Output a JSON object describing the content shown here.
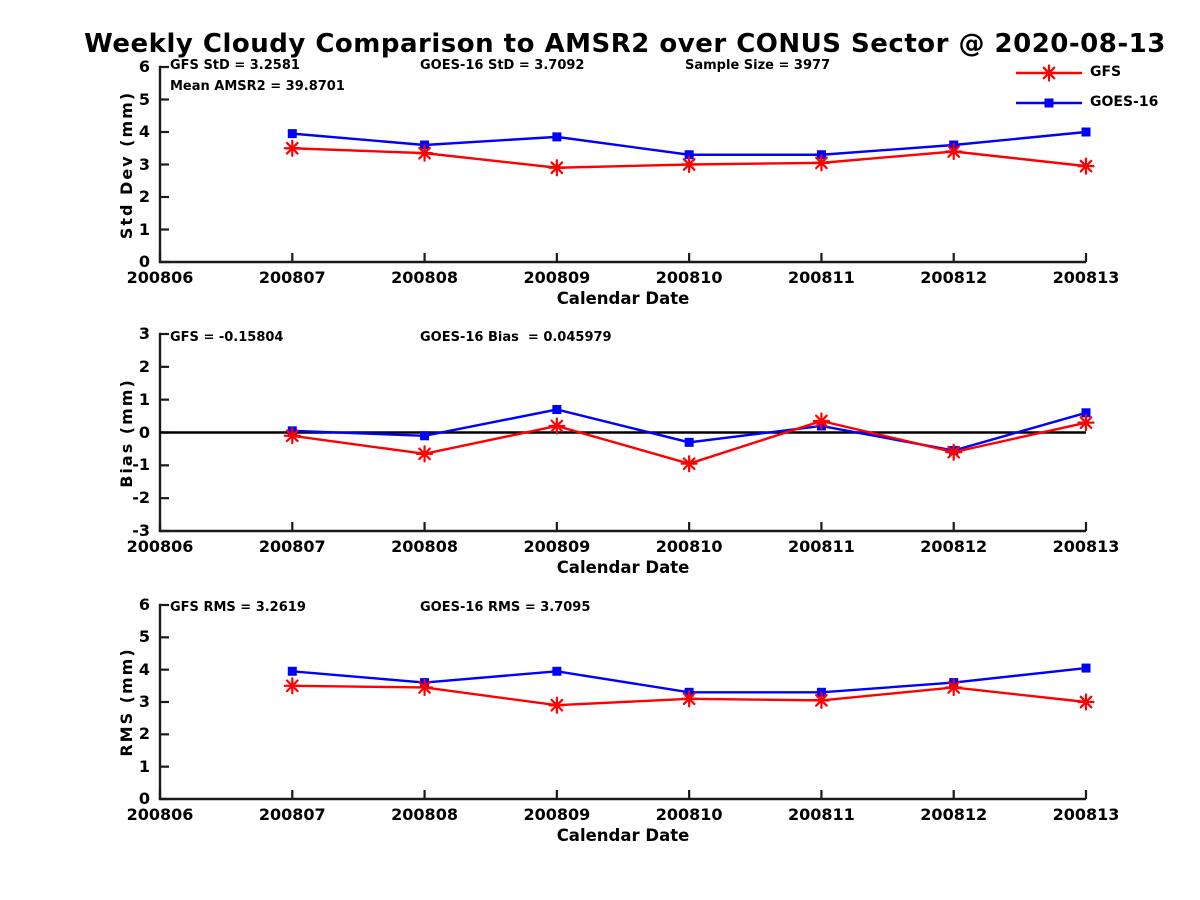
{
  "title": "Weekly Cloudy Comparison to AMSR2 over CONUS Sector @ 2020-08-13",
  "colors": {
    "gfs": "#ff0000",
    "goes16": "#0000ff",
    "axis": "#1a1a1a",
    "zero_line": "#000000"
  },
  "legend": {
    "position": "top-right",
    "items": [
      {
        "label": "GFS",
        "color": "#ff0000",
        "marker": "asterisk"
      },
      {
        "label": "GOES-16",
        "color": "#0000ff",
        "marker": "square"
      }
    ]
  },
  "x_axis": {
    "label": "Calendar Date",
    "ticks": [
      "200806",
      "200807",
      "200808",
      "200809",
      "200810",
      "200811",
      "200812",
      "200813"
    ]
  },
  "chart_data": [
    {
      "type": "line",
      "panel": "std_dev",
      "ylabel": "Std Dev (mm)",
      "xlabel": "Calendar Date",
      "ylim": [
        0,
        6
      ],
      "yticks": [
        0,
        1,
        2,
        3,
        4,
        5,
        6
      ],
      "grid": false,
      "zero_line": false,
      "x_categories": [
        "200807",
        "200808",
        "200809",
        "200810",
        "200811",
        "200812",
        "200813"
      ],
      "annotations": {
        "gfs_std": "GFS StD = 3.2581",
        "mean_amsr2": "Mean AMSR2 = 39.8701",
        "goes_std": "GOES-16 StD = 3.7092",
        "sample_size": "Sample Size = 3977"
      },
      "series": [
        {
          "name": "GFS",
          "color": "#ff0000",
          "marker": "asterisk",
          "values": [
            3.5,
            3.35,
            2.9,
            3.0,
            3.05,
            3.4,
            2.95
          ]
        },
        {
          "name": "GOES-16",
          "color": "#0000ff",
          "marker": "square",
          "values": [
            3.95,
            3.6,
            3.85,
            3.3,
            3.3,
            3.6,
            4.0
          ]
        }
      ]
    },
    {
      "type": "line",
      "panel": "bias",
      "ylabel": "Bias (mm)",
      "xlabel": "Calendar Date",
      "ylim": [
        -3,
        3
      ],
      "yticks": [
        -3,
        -2,
        -1,
        0,
        1,
        2,
        3
      ],
      "grid": false,
      "zero_line": true,
      "x_categories": [
        "200807",
        "200808",
        "200809",
        "200810",
        "200811",
        "200812",
        "200813"
      ],
      "annotations": {
        "gfs_bias": "GFS = -0.15804",
        "goes_bias": "GOES-16 Bias  = 0.045979"
      },
      "series": [
        {
          "name": "GFS",
          "color": "#ff0000",
          "marker": "asterisk",
          "values": [
            -0.1,
            -0.65,
            0.2,
            -0.95,
            0.35,
            -0.6,
            0.3
          ]
        },
        {
          "name": "GOES-16",
          "color": "#0000ff",
          "marker": "square",
          "values": [
            0.05,
            -0.1,
            0.7,
            -0.3,
            0.2,
            -0.55,
            0.6
          ]
        }
      ]
    },
    {
      "type": "line",
      "panel": "rms",
      "ylabel": "RMS (mm)",
      "xlabel": "Calendar Date",
      "ylim": [
        0,
        6
      ],
      "yticks": [
        0,
        1,
        2,
        3,
        4,
        5,
        6
      ],
      "grid": false,
      "zero_line": false,
      "x_categories": [
        "200807",
        "200808",
        "200809",
        "200810",
        "200811",
        "200812",
        "200813"
      ],
      "annotations": {
        "gfs_rms": "GFS RMS = 3.2619",
        "goes_rms": "GOES-16 RMS = 3.7095"
      },
      "series": [
        {
          "name": "GFS",
          "color": "#ff0000",
          "marker": "asterisk",
          "values": [
            3.5,
            3.45,
            2.9,
            3.1,
            3.05,
            3.45,
            3.0
          ]
        },
        {
          "name": "GOES-16",
          "color": "#0000ff",
          "marker": "square",
          "values": [
            3.95,
            3.6,
            3.95,
            3.3,
            3.3,
            3.6,
            4.05
          ]
        }
      ]
    }
  ]
}
